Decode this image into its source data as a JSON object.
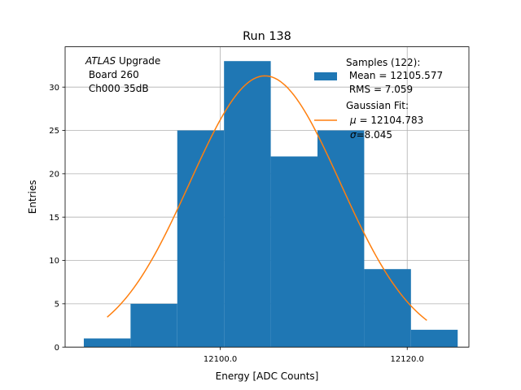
{
  "chart_data": {
    "type": "bar",
    "title": "Run 138",
    "xlabel": "Energy [ADC Counts]",
    "ylabel": "Entries",
    "xlim": [
      12083.4,
      12126.6
    ],
    "ylim": [
      0,
      34.65
    ],
    "grid": true,
    "legend_position": "top-right",
    "x_ticks": [
      {
        "value": 12100.0,
        "label": "12100.0"
      },
      {
        "value": 12120.0,
        "label": "12120.0"
      }
    ],
    "y_ticks": [
      {
        "value": 0,
        "label": "0"
      },
      {
        "value": 5,
        "label": "5"
      },
      {
        "value": 10,
        "label": "10"
      },
      {
        "value": 15,
        "label": "15"
      },
      {
        "value": 20,
        "label": "20"
      },
      {
        "value": 25,
        "label": "25"
      },
      {
        "value": 30,
        "label": "30"
      }
    ],
    "bins": [
      {
        "x0": 12085.4,
        "x1": 12090.4,
        "count": 1
      },
      {
        "x0": 12090.4,
        "x1": 12095.4,
        "count": 5
      },
      {
        "x0": 12095.4,
        "x1": 12100.4,
        "count": 25
      },
      {
        "x0": 12100.4,
        "x1": 12105.4,
        "count": 33
      },
      {
        "x0": 12105.4,
        "x1": 12110.4,
        "count": 22
      },
      {
        "x0": 12110.4,
        "x1": 12115.4,
        "count": 25
      },
      {
        "x0": 12115.4,
        "x1": 12120.4,
        "count": 9
      },
      {
        "x0": 12120.4,
        "x1": 12125.4,
        "count": 2
      }
    ],
    "fit": {
      "type": "gaussian",
      "mu": 12104.783,
      "sigma": 8.045,
      "amplitude": 31.3,
      "x_range": [
        12087.9,
        12122.1
      ]
    },
    "colors": {
      "bars": "#1f77b4",
      "fit": "#ff7f0e",
      "grid": "#b0b0b0"
    },
    "annotation": {
      "line1_italic": "ATLAS",
      "line1_rest": " Upgrade",
      "line2": " Board 260",
      "line3": " Ch000 35dB"
    },
    "legend": {
      "samples_line1": "Samples (122):",
      "samples_line2": " Mean = 12105.577",
      "samples_line3": " RMS = 7.059",
      "fit_line1": "Gaussian Fit:",
      "fit_mu_symbol": "μ",
      "fit_mu_value": " = 12104.783",
      "fit_sigma_symbol": "σ",
      "fit_sigma_value": "=8.045"
    }
  }
}
